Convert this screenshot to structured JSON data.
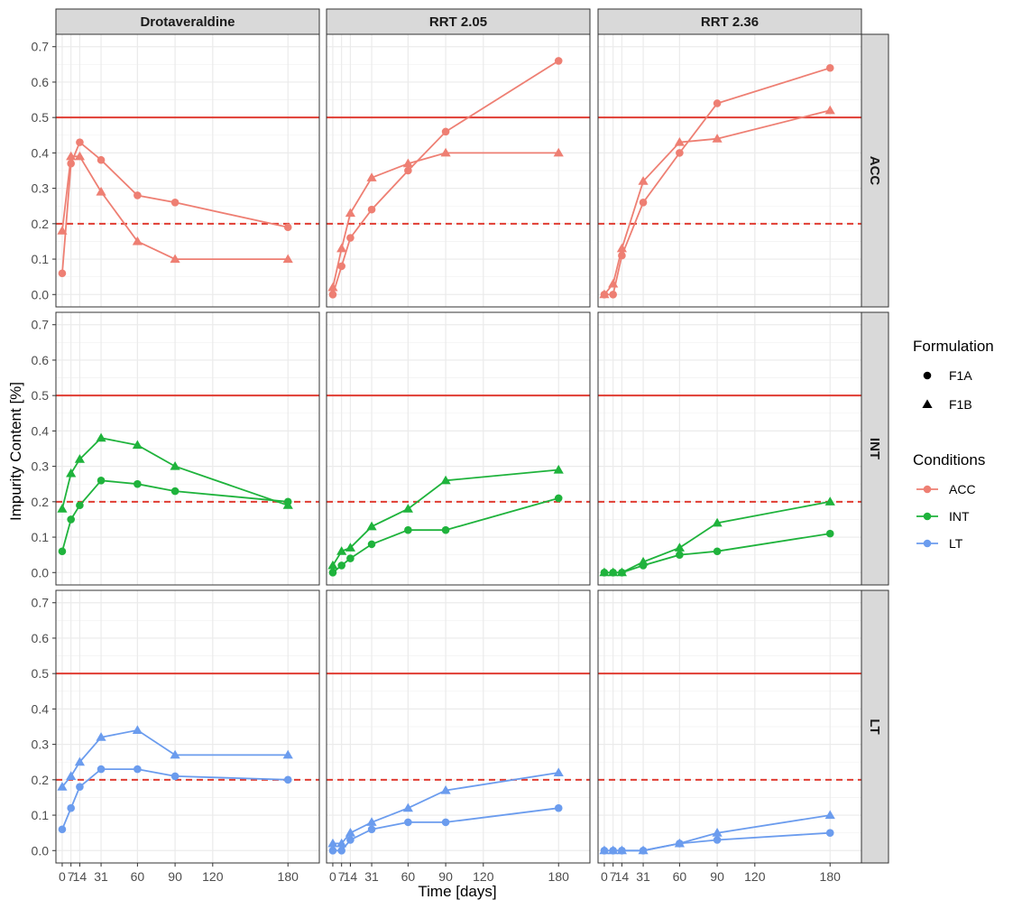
{
  "colors": {
    "ACC": "#ee7f73",
    "INT": "#1fb33c",
    "LT": "#6b9cee",
    "ref_line": "#e03c32",
    "strip_fill": "#d9d9d9",
    "grid": "#ebebeb"
  },
  "chart_data": {
    "type": "line",
    "facet_columns": [
      "Drotaveraldine",
      "RRT 2.05",
      "RRT 2.36"
    ],
    "facet_rows": [
      "ACC",
      "INT",
      "LT"
    ],
    "xlabel": "Time [days]",
    "ylabel": "Impurity Content [%]",
    "x_ticks": [
      0,
      7,
      14,
      31,
      60,
      90,
      120,
      180
    ],
    "x_tick_labels": [
      "0",
      "7",
      "14",
      "31",
      "60",
      "90",
      "120",
      "180"
    ],
    "xlim": [
      -5,
      205
    ],
    "y_ticks": [
      0.0,
      0.1,
      0.2,
      0.3,
      0.4,
      0.5,
      0.6,
      0.7
    ],
    "y_tick_labels": [
      "0.0",
      "0.1",
      "0.2",
      "0.3",
      "0.4",
      "0.5",
      "0.6",
      "0.7"
    ],
    "ylim": [
      -0.035,
      0.735
    ],
    "reference_lines": [
      {
        "y": 0.5,
        "style": "solid"
      },
      {
        "y": 0.2,
        "style": "dashed"
      }
    ],
    "grid": true,
    "legend": {
      "position": "right",
      "formulation_title": "Formulation",
      "formulation": [
        {
          "label": "F1A",
          "shape": "circle"
        },
        {
          "label": "F1B",
          "shape": "triangle"
        }
      ],
      "conditions_title": "Conditions",
      "conditions": [
        "ACC",
        "INT",
        "LT"
      ]
    },
    "series": [
      {
        "column": "Drotaveraldine",
        "condition": "ACC",
        "formulation": "F1A",
        "x": [
          0,
          7,
          14,
          31,
          60,
          90,
          180
        ],
        "y": [
          0.06,
          0.37,
          0.43,
          0.38,
          0.28,
          0.26,
          0.19
        ]
      },
      {
        "column": "Drotaveraldine",
        "condition": "ACC",
        "formulation": "F1B",
        "x": [
          0,
          7,
          14,
          31,
          60,
          90,
          180
        ],
        "y": [
          0.18,
          0.39,
          0.39,
          0.29,
          0.15,
          0.1,
          0.1
        ]
      },
      {
        "column": "Drotaveraldine",
        "condition": "INT",
        "formulation": "F1A",
        "x": [
          0,
          7,
          14,
          31,
          60,
          90,
          180
        ],
        "y": [
          0.06,
          0.15,
          0.19,
          0.26,
          0.25,
          0.23,
          0.2
        ]
      },
      {
        "column": "Drotaveraldine",
        "condition": "INT",
        "formulation": "F1B",
        "x": [
          0,
          7,
          14,
          31,
          60,
          90,
          180
        ],
        "y": [
          0.18,
          0.28,
          0.32,
          0.38,
          0.36,
          0.3,
          0.19
        ]
      },
      {
        "column": "Drotaveraldine",
        "condition": "LT",
        "formulation": "F1A",
        "x": [
          0,
          7,
          14,
          31,
          60,
          90,
          180
        ],
        "y": [
          0.06,
          0.12,
          0.18,
          0.23,
          0.23,
          0.21,
          0.2
        ]
      },
      {
        "column": "Drotaveraldine",
        "condition": "LT",
        "formulation": "F1B",
        "x": [
          0,
          7,
          14,
          31,
          60,
          90,
          180
        ],
        "y": [
          0.18,
          0.21,
          0.25,
          0.32,
          0.34,
          0.27,
          0.27
        ]
      },
      {
        "column": "RRT 2.05",
        "condition": "ACC",
        "formulation": "F1A",
        "x": [
          0,
          7,
          14,
          31,
          60,
          90,
          180
        ],
        "y": [
          0.0,
          0.08,
          0.16,
          0.24,
          0.35,
          0.46,
          0.66
        ]
      },
      {
        "column": "RRT 2.05",
        "condition": "ACC",
        "formulation": "F1B",
        "x": [
          0,
          7,
          14,
          31,
          60,
          90,
          180
        ],
        "y": [
          0.02,
          0.13,
          0.23,
          0.33,
          0.37,
          0.4,
          0.4
        ]
      },
      {
        "column": "RRT 2.05",
        "condition": "INT",
        "formulation": "F1A",
        "x": [
          0,
          7,
          14,
          31,
          60,
          90,
          180
        ],
        "y": [
          0.0,
          0.02,
          0.04,
          0.08,
          0.12,
          0.12,
          0.21
        ]
      },
      {
        "column": "RRT 2.05",
        "condition": "INT",
        "formulation": "F1B",
        "x": [
          0,
          7,
          14,
          31,
          60,
          90,
          180
        ],
        "y": [
          0.02,
          0.06,
          0.07,
          0.13,
          0.18,
          0.26,
          0.29
        ]
      },
      {
        "column": "RRT 2.05",
        "condition": "LT",
        "formulation": "F1A",
        "x": [
          0,
          7,
          14,
          31,
          60,
          90,
          180
        ],
        "y": [
          0.0,
          0.0,
          0.03,
          0.06,
          0.08,
          0.08,
          0.12
        ]
      },
      {
        "column": "RRT 2.05",
        "condition": "LT",
        "formulation": "F1B",
        "x": [
          0,
          7,
          14,
          31,
          60,
          90,
          180
        ],
        "y": [
          0.02,
          0.02,
          0.05,
          0.08,
          0.12,
          0.17,
          0.22
        ]
      },
      {
        "column": "RRT 2.36",
        "condition": "ACC",
        "formulation": "F1A",
        "x": [
          0,
          7,
          14,
          31,
          60,
          90,
          180
        ],
        "y": [
          0.0,
          0.0,
          0.11,
          0.26,
          0.4,
          0.54,
          0.64
        ]
      },
      {
        "column": "RRT 2.36",
        "condition": "ACC",
        "formulation": "F1B",
        "x": [
          0,
          7,
          14,
          31,
          60,
          90,
          180
        ],
        "y": [
          0.0,
          0.03,
          0.13,
          0.32,
          0.43,
          0.44,
          0.52
        ]
      },
      {
        "column": "RRT 2.36",
        "condition": "INT",
        "formulation": "F1A",
        "x": [
          0,
          7,
          14,
          31,
          60,
          90,
          180
        ],
        "y": [
          0.0,
          0.0,
          0.0,
          0.02,
          0.05,
          0.06,
          0.11
        ]
      },
      {
        "column": "RRT 2.36",
        "condition": "INT",
        "formulation": "F1B",
        "x": [
          0,
          7,
          14,
          31,
          60,
          90,
          180
        ],
        "y": [
          0.0,
          0.0,
          0.0,
          0.03,
          0.07,
          0.14,
          0.2
        ]
      },
      {
        "column": "RRT 2.36",
        "condition": "LT",
        "formulation": "F1A",
        "x": [
          0,
          7,
          14,
          31,
          60,
          90,
          180
        ],
        "y": [
          0.0,
          0.0,
          0.0,
          0.0,
          0.02,
          0.03,
          0.05
        ]
      },
      {
        "column": "RRT 2.36",
        "condition": "LT",
        "formulation": "F1B",
        "x": [
          0,
          7,
          14,
          31,
          60,
          90,
          180
        ],
        "y": [
          0.0,
          0.0,
          0.0,
          0.0,
          0.02,
          0.05,
          0.1
        ]
      }
    ]
  }
}
